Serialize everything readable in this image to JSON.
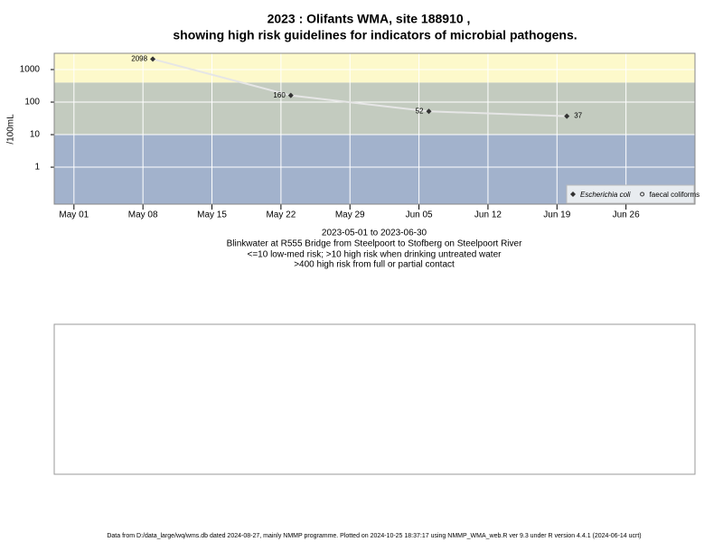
{
  "chart_data": {
    "type": "line",
    "title": "2023 : Olifants WMA, site 188910 ,",
    "subtitle": "showing high risk guidelines for indicators of microbial pathogens.",
    "y_label": "/100mL",
    "x_label_lines": [
      "2023-05-01 to 2023-06-30",
      "Blinkwater at R555 Bridge from Steelpoort to Stofberg on Steelpoort River",
      "<=10 low-med risk; >10 high risk when drinking untreated water",
      ">400 high risk from full or partial contact"
    ],
    "footer": "Data from D:/data_large/wq/wms.db dated 2024-08-27, mainly NMMP programme. Plotted on 2024-10-25 18:37:17 using NMMP_WMA_web.R ver 9.3 under R version 4.4.1 (2024-06-14 ucrt)",
    "x": [
      "2023-05-09",
      "2023-05-23",
      "2023-06-06",
      "2023-06-20"
    ],
    "series": [
      {
        "name": "Escherichia coli",
        "color": "#333333",
        "line_color": "#e6e6e6",
        "marker": "diamond",
        "values": [
          2098,
          160,
          52,
          37
        ]
      },
      {
        "name": "faecal coliforms",
        "color": "#333333",
        "line_color": "#e6e6e6",
        "marker": "circle",
        "values": [
          null,
          null,
          null,
          null
        ]
      }
    ],
    "xlim": [
      "2023-04-29",
      "2023-07-03"
    ],
    "xticks": [
      {
        "value": "2023-05-01",
        "label": "May 01"
      },
      {
        "value": "2023-05-08",
        "label": "May 08"
      },
      {
        "value": "2023-05-15",
        "label": "May 15"
      },
      {
        "value": "2023-05-22",
        "label": "May 22"
      },
      {
        "value": "2023-05-29",
        "label": "May 29"
      },
      {
        "value": "2023-06-05",
        "label": "Jun 05"
      },
      {
        "value": "2023-06-12",
        "label": "Jun 12"
      },
      {
        "value": "2023-06-19",
        "label": "Jun 19"
      },
      {
        "value": "2023-06-26",
        "label": "Jun 26"
      }
    ],
    "ylim": [
      0.073,
      3162
    ],
    "yticks": [
      1,
      10,
      100,
      1000
    ],
    "log_y": true,
    "grid": true,
    "grid_color": "#ffffff",
    "band_limits": [
      10,
      400
    ],
    "band_colors": [
      "#a2b2cc",
      "#c3cbbf",
      "#fdf9cb"
    ],
    "legend_position": "bottom-right"
  }
}
